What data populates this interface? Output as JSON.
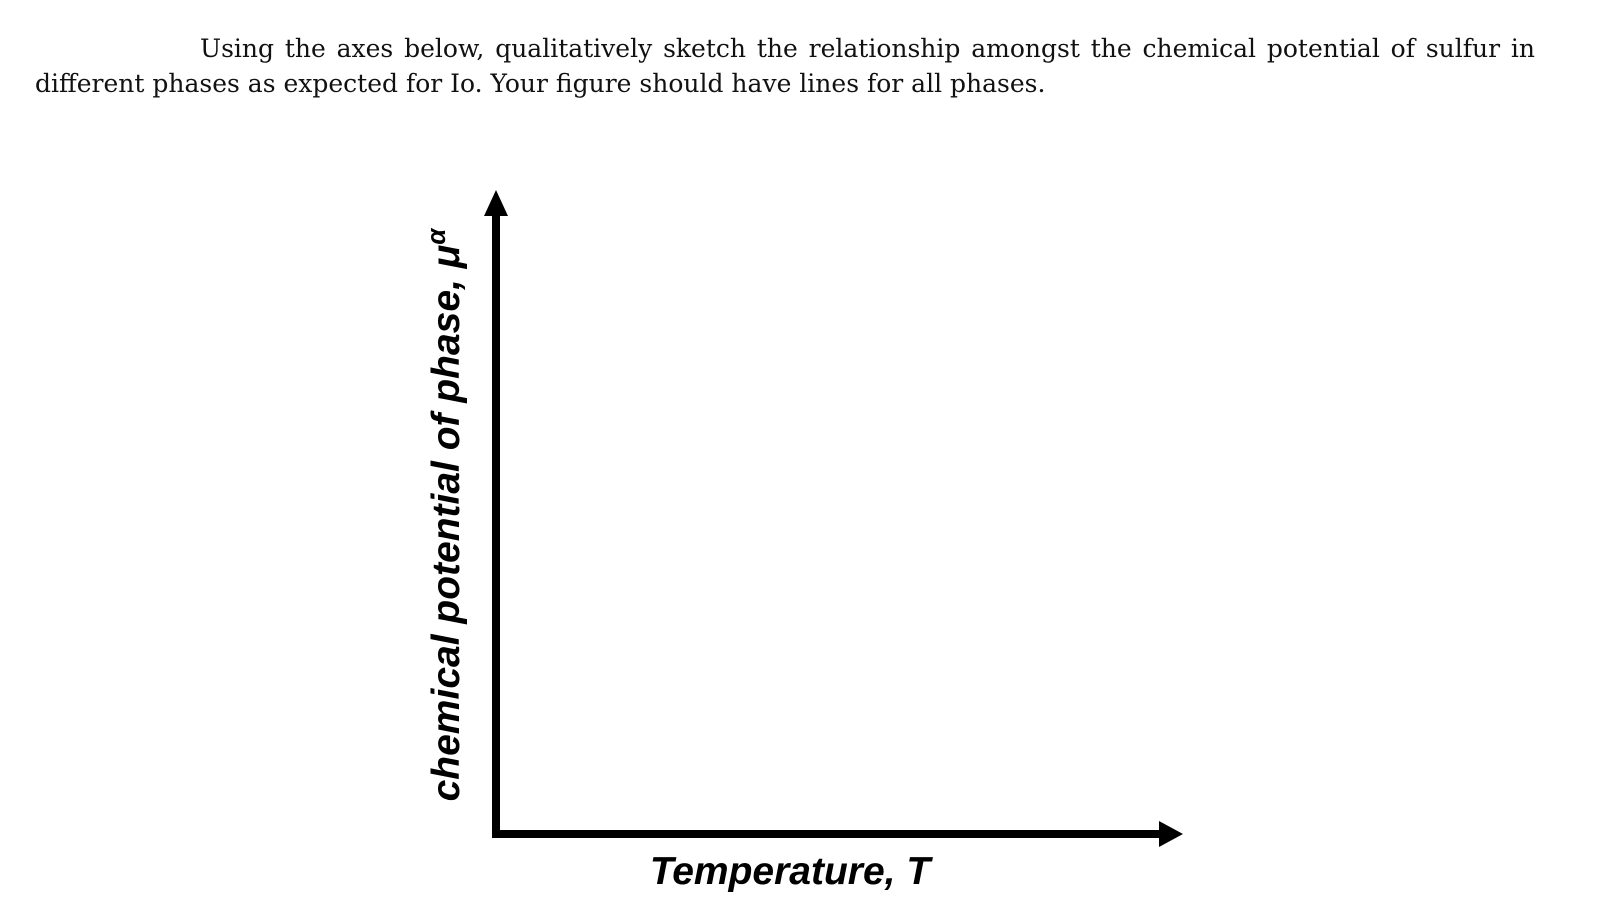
{
  "question": {
    "text": "Using the axes below, qualitatively sketch the relationship amongst the chemical potential of sulfur in different phases as expected for Io. Your figure should have lines for all phases."
  },
  "figure": {
    "y_axis_label": "chemical potential of phase, μ",
    "y_axis_superscript": "α",
    "x_axis_label": "Temperature, T",
    "axis_color": "#000000"
  }
}
